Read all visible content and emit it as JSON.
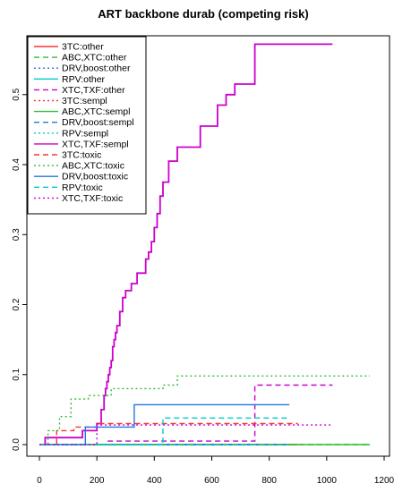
{
  "chart_data": {
    "type": "line",
    "title": "ART backbone durab (competing risk)",
    "xlabel": "",
    "ylabel": "",
    "xlim": [
      0,
      1200
    ],
    "ylim": [
      -0.012,
      0.595
    ],
    "x_ticks": [
      0,
      200,
      400,
      600,
      800,
      1000,
      1200
    ],
    "y_ticks": [
      0.0,
      0.1,
      0.2,
      0.3,
      0.4,
      0.5
    ],
    "y_tick_labels": [
      "0.0",
      "0.1",
      "0.2",
      "0.3",
      "0.4",
      "0.5"
    ],
    "legend_position": "top-left",
    "series": [
      {
        "name": "3TC:other",
        "color": "#ff3333",
        "dash": "solid",
        "x": [
          0,
          900
        ],
        "y": [
          0,
          0
        ]
      },
      {
        "name": "ABC,XTC:other",
        "color": "#33bb33",
        "dash": "dashed",
        "x": [
          0,
          1150
        ],
        "y": [
          0,
          0
        ]
      },
      {
        "name": "DRV,boost:other",
        "color": "#2277dd",
        "dash": "dotted",
        "x": [
          0,
          870
        ],
        "y": [
          0,
          0
        ]
      },
      {
        "name": "RPV:other",
        "color": "#00cccc",
        "dash": "solid",
        "x": [
          0,
          870
        ],
        "y": [
          0,
          0
        ]
      },
      {
        "name": "XTC,TXF:other",
        "color": "#cc00cc",
        "dash": "dashed",
        "x": [
          0,
          240,
          750,
          1020
        ],
        "y": [
          0,
          0.005,
          0.085,
          0.085
        ]
      },
      {
        "name": "3TC:sempl",
        "color": "#ff3333",
        "dash": "dotted",
        "x": [
          0,
          900
        ],
        "y": [
          0,
          0
        ]
      },
      {
        "name": "ABC,XTC:sempl",
        "color": "#33bb33",
        "dash": "solid",
        "x": [
          0,
          1150
        ],
        "y": [
          0,
          0
        ]
      },
      {
        "name": "DRV,boost:sempl",
        "color": "#2277dd",
        "dash": "dashed",
        "x": [
          0,
          870
        ],
        "y": [
          0,
          0
        ]
      },
      {
        "name": "RPV:sempl",
        "color": "#00cccc",
        "dash": "dotted",
        "x": [
          0,
          870
        ],
        "y": [
          0,
          0
        ]
      },
      {
        "name": "XTC,TXF:sempl",
        "color": "#cc00cc",
        "dash": "solid",
        "x": [
          0,
          20,
          150,
          200,
          215,
          225,
          230,
          235,
          240,
          245,
          250,
          255,
          260,
          265,
          270,
          280,
          290,
          300,
          320,
          340,
          370,
          380,
          390,
          400,
          410,
          420,
          430,
          450,
          480,
          560,
          620,
          650,
          680,
          750,
          1020
        ],
        "y": [
          0,
          0.01,
          0.02,
          0.03,
          0.05,
          0.07,
          0.08,
          0.09,
          0.1,
          0.11,
          0.12,
          0.14,
          0.15,
          0.16,
          0.17,
          0.19,
          0.21,
          0.22,
          0.23,
          0.245,
          0.265,
          0.275,
          0.29,
          0.31,
          0.33,
          0.355,
          0.375,
          0.405,
          0.425,
          0.455,
          0.485,
          0.5,
          0.515,
          0.572,
          0.572
        ]
      },
      {
        "name": "3TC:toxic",
        "color": "#ff3333",
        "dash": "dashed",
        "x": [
          0,
          60,
          120,
          200,
          900
        ],
        "y": [
          0,
          0.02,
          0.025,
          0.03,
          0.03
        ]
      },
      {
        "name": "ABC,XTC:toxic",
        "color": "#33bb33",
        "dash": "dotted",
        "x": [
          0,
          30,
          70,
          110,
          170,
          250,
          430,
          480,
          1150
        ],
        "y": [
          0,
          0.02,
          0.04,
          0.065,
          0.07,
          0.08,
          0.085,
          0.098,
          0.098
        ]
      },
      {
        "name": "DRV,boost:toxic",
        "color": "#2277dd",
        "dash": "solid",
        "x": [
          0,
          160,
          330,
          870
        ],
        "y": [
          0,
          0.025,
          0.057,
          0.057
        ]
      },
      {
        "name": "RPV:toxic",
        "color": "#00cccc",
        "dash": "dashed",
        "x": [
          0,
          430,
          870
        ],
        "y": [
          0,
          0.038,
          0.038
        ]
      },
      {
        "name": "XTC,TXF:toxic",
        "color": "#cc00cc",
        "dash": "dotted",
        "x": [
          0,
          200,
          1020
        ],
        "y": [
          0,
          0.028,
          0.028
        ]
      }
    ]
  }
}
